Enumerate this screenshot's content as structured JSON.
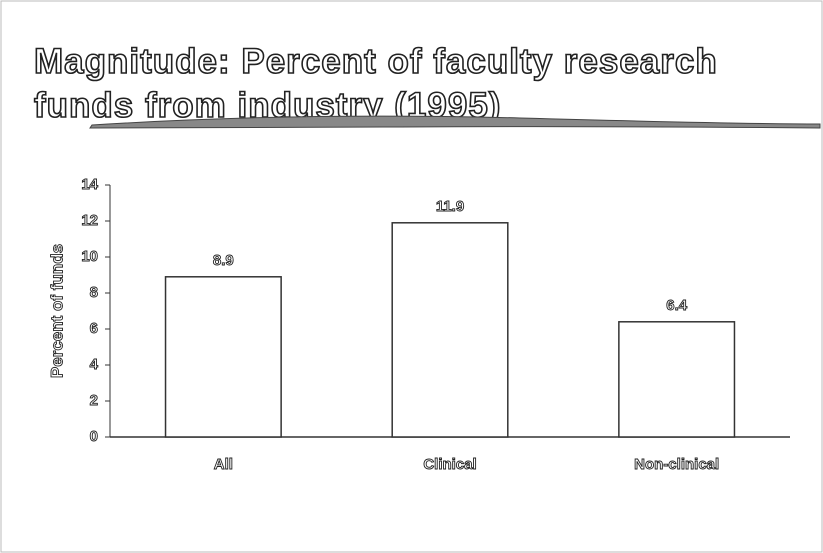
{
  "chart_data": {
    "type": "bar",
    "title": "Magnitude:  Percent of faculty research funds from industry (1995)",
    "ylabel": "Percent of funds",
    "categories": [
      "All",
      "Clinical",
      "Non-clinical"
    ],
    "values": [
      8.9,
      11.9,
      6.4
    ],
    "color": "#ffffff",
    "ylim": [
      0,
      14
    ],
    "yticks": [
      0,
      2,
      4,
      6,
      8,
      10,
      12,
      14
    ],
    "grid": false
  }
}
